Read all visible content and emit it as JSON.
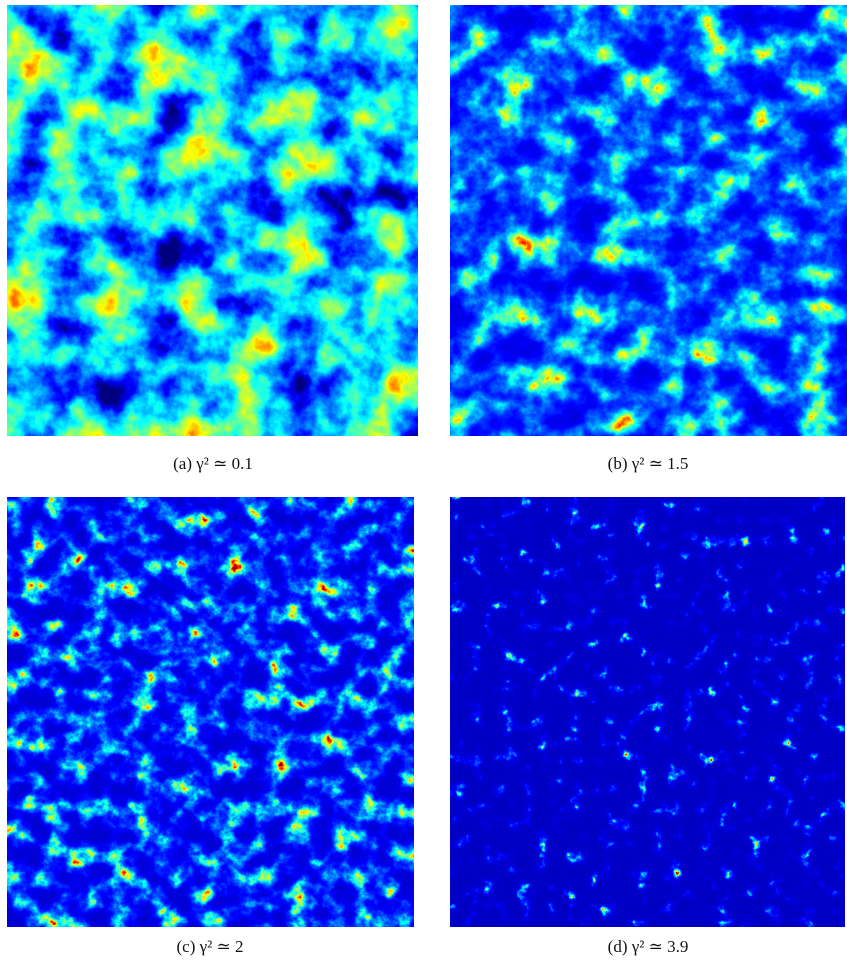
{
  "figure": {
    "panels": [
      {
        "caption": "(a) γ² ≃ 0.1"
      },
      {
        "caption": "(b) γ² ≃ 1.5"
      },
      {
        "caption": "(c) γ² ≃ 2"
      },
      {
        "caption": "(d) γ² ≃ 3.9"
      }
    ]
  }
}
